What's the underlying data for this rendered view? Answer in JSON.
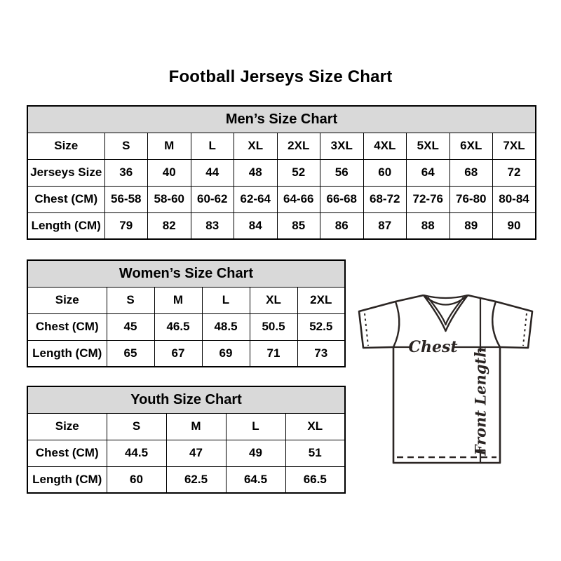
{
  "page_title": "Football Jerseys Size Chart",
  "diagram": {
    "chest_label": "Chest",
    "front_length_label": "Front Length"
  },
  "colors": {
    "table_header_bg": "#d9d9d9",
    "table_border": "#000000",
    "diagram_stroke": "#2b2523",
    "text": "#000000"
  },
  "chart_data": [
    {
      "type": "table",
      "title": "Men’s Size Chart",
      "rows": [
        [
          "Size",
          "S",
          "M",
          "L",
          "XL",
          "2XL",
          "3XL",
          "4XL",
          "5XL",
          "6XL",
          "7XL"
        ],
        [
          "Jerseys Size",
          "36",
          "40",
          "44",
          "48",
          "52",
          "56",
          "60",
          "64",
          "68",
          "72"
        ],
        [
          "Chest (CM)",
          "56-58",
          "58-60",
          "60-62",
          "62-64",
          "64-66",
          "66-68",
          "68-72",
          "72-76",
          "76-80",
          "80-84"
        ],
        [
          "Length (CM)",
          "79",
          "82",
          "83",
          "84",
          "85",
          "86",
          "87",
          "88",
          "89",
          "90"
        ]
      ]
    },
    {
      "type": "table",
      "title": "Women’s Size Chart",
      "rows": [
        [
          "Size",
          "S",
          "M",
          "L",
          "XL",
          "2XL"
        ],
        [
          "Chest (CM)",
          "45",
          "46.5",
          "48.5",
          "50.5",
          "52.5"
        ],
        [
          "Length (CM)",
          "65",
          "67",
          "69",
          "71",
          "73"
        ]
      ]
    },
    {
      "type": "table",
      "title": "Youth Size Chart",
      "rows": [
        [
          "Size",
          "S",
          "M",
          "L",
          "XL"
        ],
        [
          "Chest (CM)",
          "44.5",
          "47",
          "49",
          "51"
        ],
        [
          "Length (CM)",
          "60",
          "62.5",
          "64.5",
          "66.5"
        ]
      ]
    }
  ]
}
